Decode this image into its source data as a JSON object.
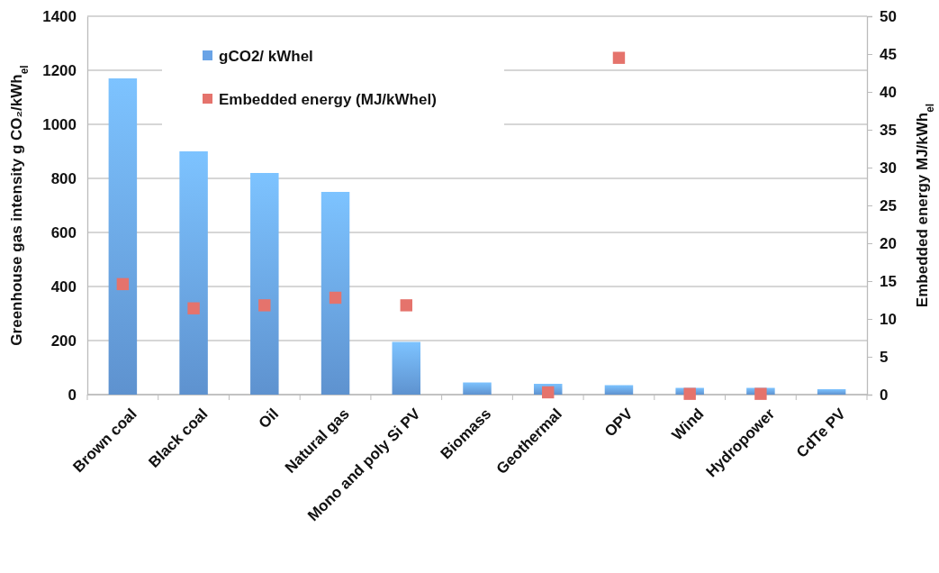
{
  "chart_data": {
    "type": "bar",
    "categories": [
      "Brown coal",
      "Black coal",
      "Oil",
      "Natural gas",
      "Mono and poly Si PV",
      "Biomass",
      "Geothermal",
      "OPV",
      "Wind",
      "Hydropower",
      "CdTe PV"
    ],
    "series": [
      {
        "name": "gCO2/ kWhel",
        "color": "#69a3e6",
        "values": [
          1170,
          900,
          820,
          750,
          195,
          45,
          40,
          35,
          25,
          25,
          20
        ]
      },
      {
        "name": "Embedded energy (MJ/kWhel)",
        "type": "scatter",
        "axis": "y2",
        "color": "#e5736c",
        "values": [
          14.6,
          11.4,
          11.8,
          12.8,
          11.8,
          null,
          0.3,
          44.5,
          0.1,
          0.1,
          null
        ]
      }
    ],
    "ylabel": "Greenhouse gas intensity g CO₂/kWh$_{el}$",
    "y2label": "Embedded energy MJ/kWh$_{el}$",
    "ylim": [
      0,
      1400
    ],
    "yticks": [
      0,
      200,
      400,
      600,
      800,
      1000,
      1200,
      1400
    ],
    "y2lim": [
      0,
      50
    ],
    "y2ticks": [
      0,
      5,
      10,
      15,
      20,
      25,
      30,
      35,
      40,
      45,
      50
    ],
    "grid": "y",
    "legend": "top left",
    "marker": "square"
  }
}
